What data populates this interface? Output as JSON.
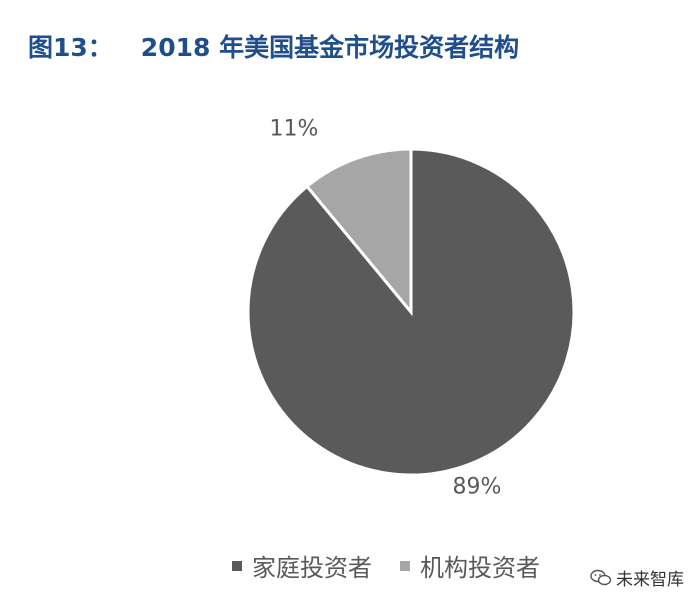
{
  "title": {
    "label": "图13：",
    "text": "2018 年美国基金市场投资者结构"
  },
  "chart_data": {
    "type": "pie",
    "categories": [
      "家庭投资者",
      "机构投资者"
    ],
    "values": [
      89,
      11
    ],
    "data_labels": [
      "89%",
      "11%"
    ],
    "colors": [
      "#5a5a5a",
      "#a6a6a6"
    ],
    "start_angle": "12 o'clock, clockwise",
    "legend_position": "bottom"
  },
  "watermark": {
    "text": "未来智库",
    "icon": "wechat-icon"
  }
}
